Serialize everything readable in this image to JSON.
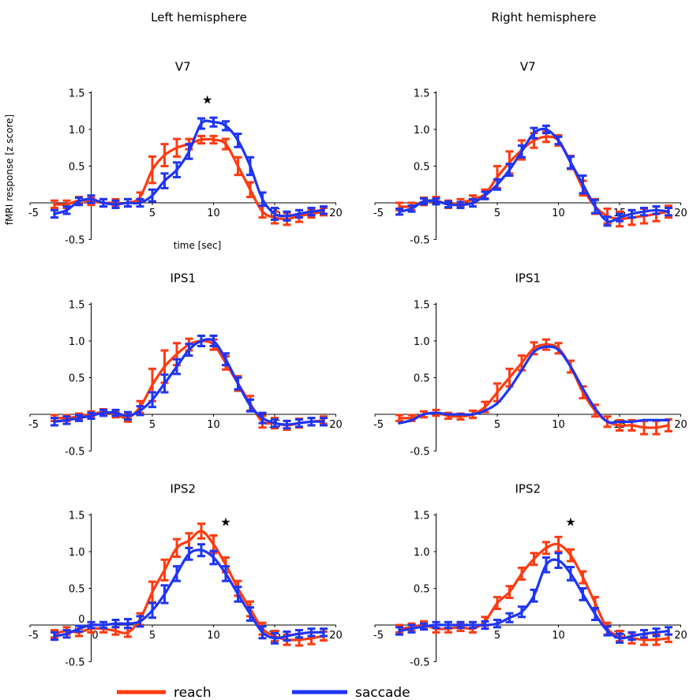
{
  "figure": {
    "left_heading": "Left hemisphere",
    "right_heading": "Right hemisphere",
    "ylabel": "fMRI response [z score]",
    "xlabel": "time [sec]",
    "significance_marker": "★"
  },
  "legend": [
    {
      "label": "reach",
      "color": "#ff3b10"
    },
    {
      "label": "saccade",
      "color": "#1e35f5"
    }
  ],
  "chart_data": [
    {
      "type": "line",
      "title": "V7",
      "hemisphere": "Left hemisphere",
      "x": [
        -3,
        -2,
        -1,
        0,
        1,
        2,
        3,
        4,
        5,
        6,
        7,
        8,
        9,
        10,
        11,
        12,
        13,
        14,
        15,
        16,
        17,
        18,
        19
      ],
      "xlim": [
        -5,
        20
      ],
      "ylim": [
        -0.5,
        1.5
      ],
      "xticks": [
        "-5",
        "5",
        "10",
        "15",
        "20"
      ],
      "yticks": [
        "1.5",
        "1.0",
        "0.5",
        "-0.5"
      ],
      "xlabel": "time [sec]",
      "ylabel": "fMRI response [z score]",
      "significance_markers": [
        9.5
      ],
      "series": [
        {
          "name": "reach",
          "color": "#ff3b10",
          "values": [
            -0.02,
            -0.02,
            0.03,
            0.02,
            0.0,
            0.0,
            0.0,
            0.08,
            0.45,
            0.65,
            0.75,
            0.8,
            0.86,
            0.86,
            0.8,
            0.5,
            0.18,
            -0.12,
            -0.2,
            -0.22,
            -0.18,
            -0.15,
            -0.12
          ],
          "errors": [
            0.05,
            0.05,
            0.05,
            0.05,
            0.05,
            0.05,
            0.05,
            0.06,
            0.18,
            0.15,
            0.12,
            0.07,
            0.05,
            0.05,
            0.07,
            0.12,
            0.1,
            0.08,
            0.08,
            0.08,
            0.08,
            0.05,
            0.05
          ]
        },
        {
          "name": "saccade",
          "color": "#1e35f5",
          "values": [
            -0.15,
            -0.1,
            0.02,
            0.05,
            0.0,
            -0.02,
            0.0,
            0.0,
            0.1,
            0.3,
            0.45,
            0.7,
            1.08,
            1.1,
            1.05,
            0.85,
            0.5,
            0.05,
            -0.15,
            -0.18,
            -0.15,
            -0.12,
            -0.1
          ],
          "errors": [
            0.05,
            0.05,
            0.05,
            0.05,
            0.05,
            0.05,
            0.05,
            0.05,
            0.08,
            0.1,
            0.1,
            0.1,
            0.07,
            0.06,
            0.06,
            0.09,
            0.12,
            0.09,
            0.08,
            0.06,
            0.05,
            0.05,
            0.05
          ]
        }
      ]
    },
    {
      "type": "line",
      "title": "V7",
      "hemisphere": "Right hemisphere",
      "x": [
        -3,
        -2,
        -1,
        0,
        1,
        2,
        3,
        4,
        5,
        6,
        7,
        8,
        9,
        10,
        11,
        12,
        13,
        14,
        15,
        16,
        17,
        18,
        19
      ],
      "xlim": [
        -5,
        20
      ],
      "ylim": [
        -0.5,
        1.5
      ],
      "xticks": [
        "-5",
        "5",
        "10",
        "15",
        "20"
      ],
      "yticks": [
        "1.5",
        "1.0",
        "0.5",
        "-0.5"
      ],
      "significance_markers": [],
      "series": [
        {
          "name": "reach",
          "color": "#ff3b10",
          "values": [
            -0.05,
            -0.05,
            0.02,
            0.03,
            -0.02,
            0.0,
            0.05,
            0.12,
            0.35,
            0.55,
            0.72,
            0.85,
            0.9,
            0.85,
            0.55,
            0.2,
            -0.05,
            -0.18,
            -0.22,
            -0.2,
            -0.18,
            -0.15,
            -0.12
          ],
          "errors": [
            0.05,
            0.05,
            0.05,
            0.05,
            0.05,
            0.05,
            0.05,
            0.06,
            0.15,
            0.15,
            0.13,
            0.1,
            0.07,
            0.07,
            0.09,
            0.1,
            0.1,
            0.1,
            0.1,
            0.1,
            0.1,
            0.1,
            0.08
          ]
        },
        {
          "name": "saccade",
          "color": "#1e35f5",
          "values": [
            -0.12,
            -0.08,
            0.02,
            0.02,
            -0.02,
            -0.03,
            0.0,
            0.1,
            0.25,
            0.45,
            0.7,
            0.95,
            1.0,
            0.85,
            0.55,
            0.25,
            -0.05,
            -0.25,
            -0.2,
            -0.15,
            -0.12,
            -0.1,
            -0.12
          ],
          "errors": [
            0.04,
            0.04,
            0.04,
            0.04,
            0.04,
            0.04,
            0.05,
            0.05,
            0.07,
            0.08,
            0.08,
            0.07,
            0.05,
            0.05,
            0.08,
            0.12,
            0.09,
            0.06,
            0.05,
            0.05,
            0.05,
            0.05,
            0.05
          ]
        }
      ]
    },
    {
      "type": "line",
      "title": "IPS1",
      "hemisphere": "Left hemisphere",
      "x": [
        -3,
        -2,
        -1,
        0,
        1,
        2,
        3,
        4,
        5,
        6,
        7,
        8,
        9,
        10,
        11,
        12,
        13,
        14,
        15,
        16,
        17,
        18,
        19
      ],
      "xlim": [
        -5,
        20
      ],
      "ylim": [
        -0.5,
        1.5
      ],
      "xticks": [
        "-5",
        "5",
        "10",
        "15",
        "20"
      ],
      "yticks": [
        "1.5",
        "1.0",
        "0.5",
        "-0.5"
      ],
      "significance_markers": [],
      "series": [
        {
          "name": "reach",
          "color": "#ff3b10",
          "values": [
            -0.05,
            -0.05,
            -0.03,
            0.0,
            0.03,
            0.0,
            -0.05,
            0.1,
            0.4,
            0.65,
            0.82,
            0.95,
            1.0,
            0.95,
            0.7,
            0.42,
            0.15,
            -0.1,
            -0.12,
            -0.15,
            -0.12,
            -0.1,
            -0.08
          ],
          "errors": [
            0.04,
            0.04,
            0.04,
            0.04,
            0.04,
            0.04,
            0.05,
            0.08,
            0.22,
            0.22,
            0.15,
            0.08,
            0.07,
            0.07,
            0.09,
            0.1,
            0.1,
            0.08,
            0.07,
            0.06,
            0.06,
            0.05,
            0.05
          ]
        },
        {
          "name": "saccade",
          "color": "#1e35f5",
          "values": [
            -0.1,
            -0.08,
            -0.05,
            -0.02,
            0.02,
            0.02,
            -0.02,
            0.05,
            0.2,
            0.42,
            0.65,
            0.88,
            1.0,
            1.0,
            0.75,
            0.42,
            0.12,
            -0.05,
            -0.12,
            -0.14,
            -0.12,
            -0.1,
            -0.1
          ],
          "errors": [
            0.05,
            0.05,
            0.04,
            0.04,
            0.04,
            0.04,
            0.05,
            0.06,
            0.1,
            0.12,
            0.1,
            0.08,
            0.07,
            0.07,
            0.08,
            0.08,
            0.08,
            0.07,
            0.05,
            0.05,
            0.05,
            0.05,
            0.05
          ]
        }
      ]
    },
    {
      "type": "line",
      "title": "IPS1",
      "hemisphere": "Right hemisphere",
      "x": [
        -3,
        -2,
        -1,
        0,
        1,
        2,
        3,
        4,
        5,
        6,
        7,
        8,
        9,
        10,
        11,
        12,
        13,
        14,
        15,
        16,
        17,
        18,
        19
      ],
      "xlim": [
        -5,
        20
      ],
      "ylim": [
        -0.5,
        1.5
      ],
      "xticks": [
        "-5",
        "5",
        "10",
        "15",
        "20"
      ],
      "yticks": [
        "1.5",
        "1.0",
        "0.5",
        "-0.5"
      ],
      "significance_markers": [],
      "series": [
        {
          "name": "reach",
          "color": "#ff3b10",
          "values": [
            -0.05,
            -0.05,
            0.0,
            0.02,
            -0.02,
            -0.03,
            0.0,
            0.1,
            0.3,
            0.5,
            0.7,
            0.9,
            0.95,
            0.9,
            0.65,
            0.3,
            0.05,
            -0.1,
            -0.15,
            -0.15,
            -0.18,
            -0.18,
            -0.15
          ],
          "errors": [
            0.04,
            0.04,
            0.04,
            0.04,
            0.04,
            0.04,
            0.05,
            0.07,
            0.12,
            0.12,
            0.1,
            0.08,
            0.07,
            0.07,
            0.08,
            0.08,
            0.08,
            0.07,
            0.07,
            0.07,
            0.09,
            0.09,
            0.08
          ]
        },
        {
          "name": "saccade",
          "color": "#1e35f5",
          "values": [
            -0.12,
            -0.08,
            0.0,
            0.02,
            0.0,
            0.0,
            0.0,
            0.05,
            0.15,
            0.35,
            0.6,
            0.85,
            0.92,
            0.88,
            0.65,
            0.35,
            0.08,
            -0.1,
            -0.1,
            -0.1,
            -0.08,
            -0.08,
            -0.08
          ]
        }
      ]
    },
    {
      "type": "line",
      "title": "IPS2",
      "hemisphere": "Left hemisphere",
      "x": [
        -3,
        -2,
        -1,
        0,
        1,
        2,
        3,
        4,
        5,
        6,
        7,
        8,
        9,
        10,
        11,
        12,
        13,
        14,
        15,
        16,
        17,
        18,
        19
      ],
      "xlim": [
        -5,
        20
      ],
      "ylim": [
        -0.5,
        1.5
      ],
      "xticks": [
        "-5",
        "0",
        "5",
        "10",
        "15",
        "20"
      ],
      "yticks": [
        "1.5",
        "1.0",
        "0.5",
        "0",
        "-0.5"
      ],
      "significance_markers": [
        11
      ],
      "series": [
        {
          "name": "reach",
          "color": "#ff3b10",
          "values": [
            -0.12,
            -0.08,
            -0.1,
            -0.05,
            -0.05,
            -0.08,
            -0.1,
            0.08,
            0.45,
            0.75,
            1.05,
            1.15,
            1.28,
            1.1,
            0.82,
            0.5,
            0.22,
            -0.05,
            -0.15,
            -0.2,
            -0.2,
            -0.18,
            -0.15
          ],
          "errors": [
            0.05,
            0.05,
            0.05,
            0.05,
            0.05,
            0.05,
            0.06,
            0.08,
            0.14,
            0.14,
            0.12,
            0.1,
            0.1,
            0.12,
            0.1,
            0.1,
            0.1,
            0.08,
            0.07,
            0.07,
            0.08,
            0.08,
            0.06
          ]
        },
        {
          "name": "saccade",
          "color": "#1e35f5",
          "values": [
            -0.15,
            -0.12,
            -0.05,
            0.0,
            0.0,
            0.02,
            0.02,
            0.05,
            0.2,
            0.42,
            0.7,
            0.97,
            1.02,
            0.92,
            0.7,
            0.42,
            0.15,
            -0.1,
            -0.18,
            -0.15,
            -0.12,
            -0.1,
            -0.1
          ],
          "errors": [
            0.05,
            0.05,
            0.04,
            0.04,
            0.04,
            0.05,
            0.06,
            0.07,
            0.1,
            0.12,
            0.1,
            0.08,
            0.08,
            0.09,
            0.1,
            0.1,
            0.09,
            0.08,
            0.07,
            0.06,
            0.05,
            0.05,
            0.05
          ]
        }
      ]
    },
    {
      "type": "line",
      "title": "IPS2",
      "hemisphere": "Right hemisphere",
      "x": [
        -3,
        -2,
        -1,
        0,
        1,
        2,
        3,
        4,
        5,
        6,
        7,
        8,
        9,
        10,
        11,
        12,
        13,
        14,
        15,
        16,
        17,
        18,
        19
      ],
      "xlim": [
        -5,
        20
      ],
      "ylim": [
        -0.5,
        1.5
      ],
      "xticks": [
        "-5",
        "5",
        "10",
        "15",
        "20"
      ],
      "yticks": [
        "1.5",
        "1.0",
        "0.5",
        "-0.5"
      ],
      "significance_markers": [
        11
      ],
      "series": [
        {
          "name": "reach",
          "color": "#ff3b10",
          "values": [
            -0.05,
            -0.03,
            0.0,
            -0.05,
            -0.05,
            -0.03,
            -0.05,
            0.05,
            0.3,
            0.45,
            0.7,
            0.9,
            1.05,
            1.1,
            0.95,
            0.65,
            0.3,
            -0.05,
            -0.15,
            -0.18,
            -0.2,
            -0.2,
            -0.18
          ],
          "errors": [
            0.05,
            0.05,
            0.05,
            0.05,
            0.05,
            0.05,
            0.05,
            0.06,
            0.08,
            0.08,
            0.08,
            0.08,
            0.08,
            0.1,
            0.08,
            0.08,
            0.08,
            0.08,
            0.07,
            0.07,
            0.07,
            0.07,
            0.05
          ]
        },
        {
          "name": "saccade",
          "color": "#1e35f5",
          "values": [
            -0.08,
            -0.05,
            -0.02,
            0.0,
            0.0,
            0.0,
            0.0,
            0.0,
            0.02,
            0.1,
            0.18,
            0.4,
            0.82,
            0.88,
            0.7,
            0.42,
            0.15,
            -0.08,
            -0.18,
            -0.15,
            -0.12,
            -0.1,
            -0.08
          ],
          "errors": [
            0.05,
            0.05,
            0.04,
            0.04,
            0.04,
            0.04,
            0.04,
            0.05,
            0.05,
            0.06,
            0.07,
            0.08,
            0.1,
            0.1,
            0.09,
            0.08,
            0.08,
            0.06,
            0.06,
            0.05,
            0.05,
            0.05,
            0.05
          ]
        }
      ]
    }
  ]
}
